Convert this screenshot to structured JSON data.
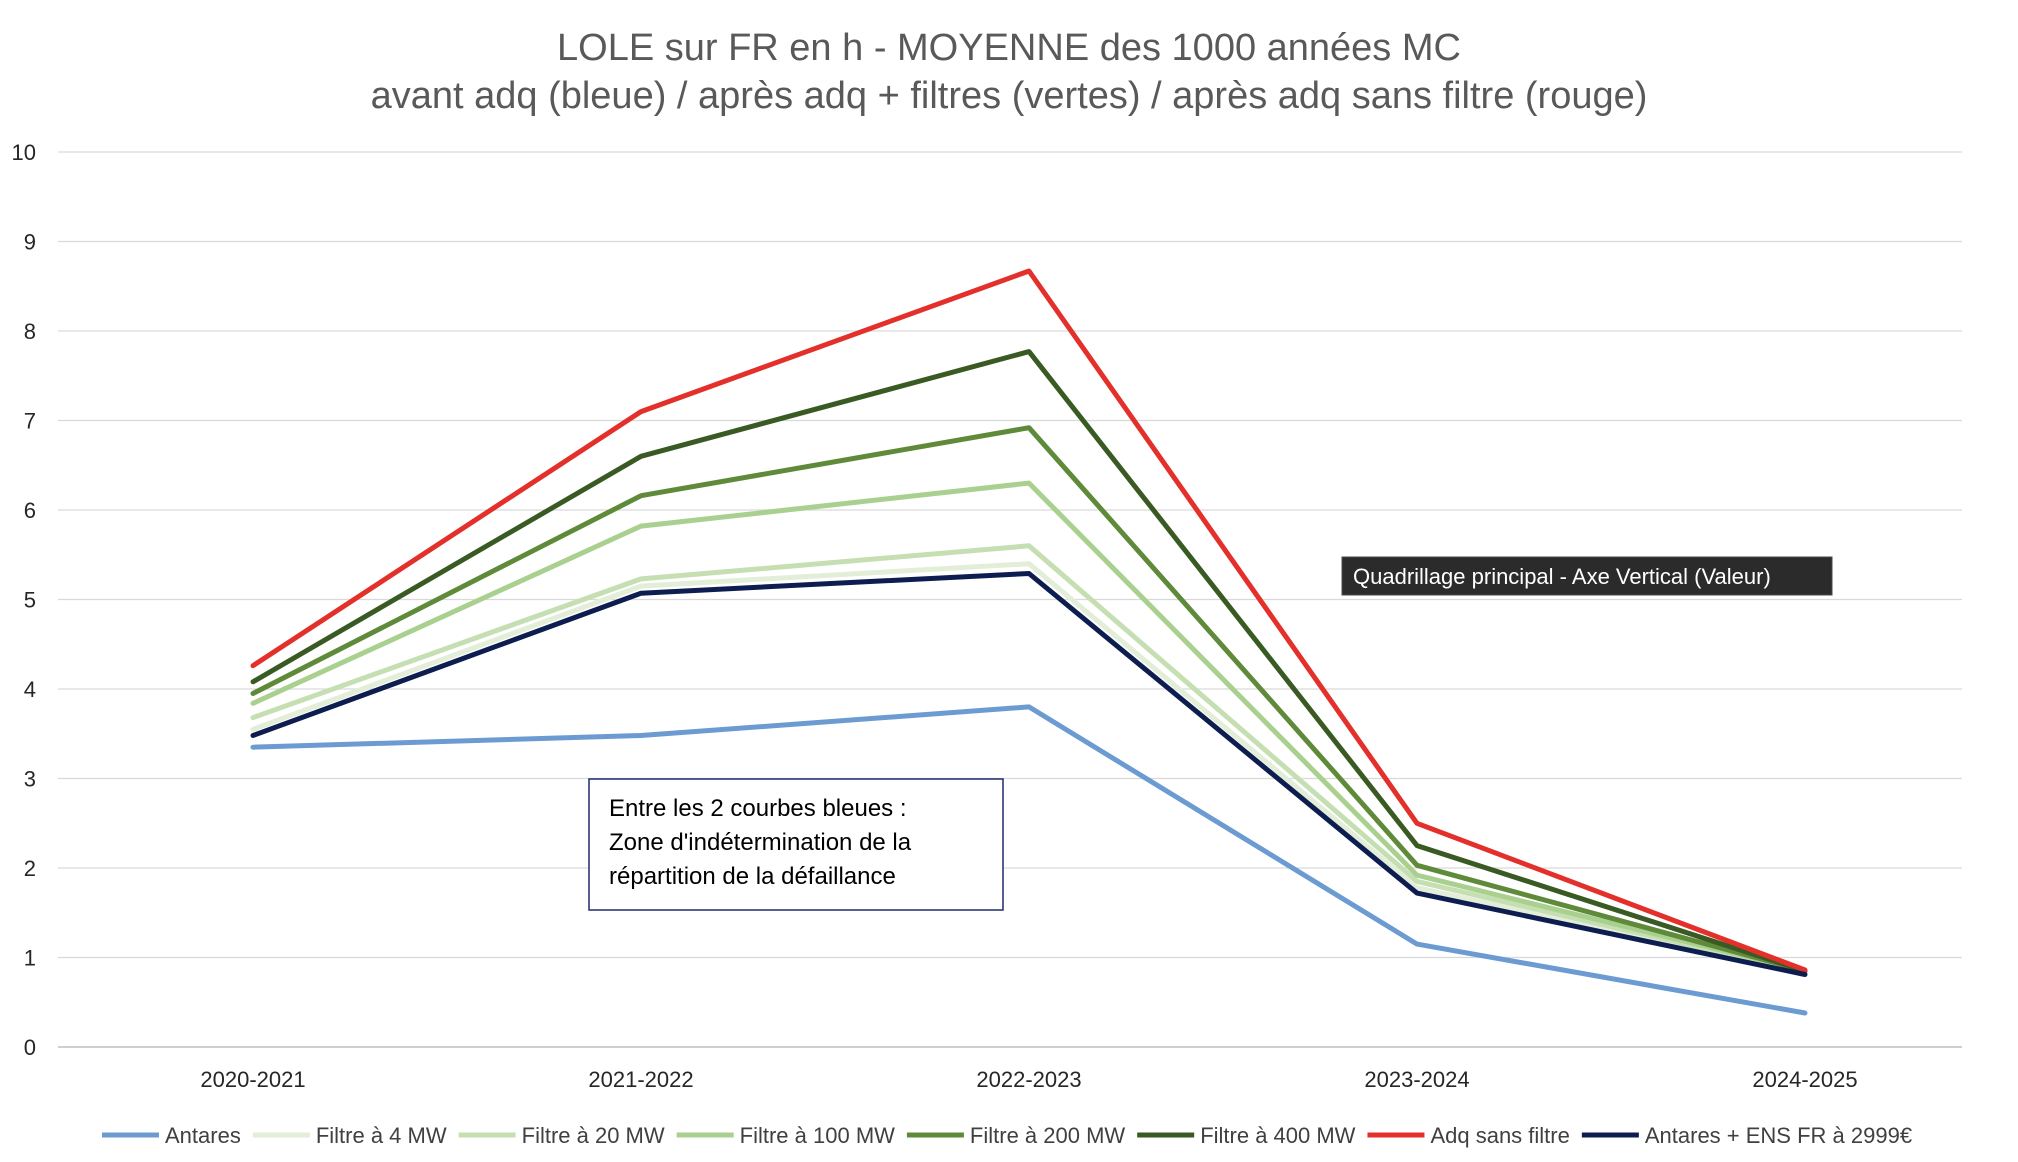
{
  "chart_data": {
    "type": "line",
    "title": "LOLE sur FR en h - MOYENNE des 1000 années MC",
    "subtitle": "avant adq (bleue) / après adq + filtres (vertes) / après adq sans filtre (rouge)",
    "categories": [
      "2020-2021",
      "2021-2022",
      "2022-2023",
      "2023-2024",
      "2024-2025"
    ],
    "ylim": [
      0,
      10
    ],
    "yticks": [
      0,
      1,
      2,
      3,
      4,
      5,
      6,
      7,
      8,
      9,
      10
    ],
    "grid": true,
    "legend_position": "bottom",
    "series": [
      {
        "name": "Antares",
        "color": "#6c9bd2",
        "values": [
          3.35,
          3.48,
          3.8,
          1.15,
          0.38
        ]
      },
      {
        "name": "Filtre à 4 MW",
        "color": "#e3eed9",
        "values": [
          3.55,
          5.15,
          5.4,
          1.78,
          0.84
        ]
      },
      {
        "name": "Filtre à 20 MW",
        "color": "#c5dfb2",
        "values": [
          3.68,
          5.23,
          5.6,
          1.85,
          0.84
        ]
      },
      {
        "name": "Filtre à 100 MW",
        "color": "#a9d08e",
        "values": [
          3.84,
          5.82,
          6.3,
          1.92,
          0.85
        ]
      },
      {
        "name": "Filtre à 200 MW",
        "color": "#5f8a3a",
        "values": [
          3.95,
          6.16,
          6.92,
          2.03,
          0.85
        ]
      },
      {
        "name": "Filtre à 400 MW",
        "color": "#3a5a24",
        "values": [
          4.08,
          6.6,
          7.77,
          2.25,
          0.85
        ]
      },
      {
        "name": "Adq sans filtre",
        "color": "#e3302b",
        "values": [
          4.26,
          7.1,
          8.67,
          2.5,
          0.86
        ]
      },
      {
        "name": "Antares + ENS FR à 2999€",
        "color": "#0d1d4f",
        "values": [
          3.48,
          5.07,
          5.29,
          1.72,
          0.81
        ]
      }
    ],
    "annotation": {
      "lines": [
        "Entre les 2 courbes bleues :",
        "Zone d'indétermination de la",
        "répartition de la défaillance"
      ]
    },
    "tooltip": "Quadrillage principal - Axe Vertical (Valeur)"
  }
}
